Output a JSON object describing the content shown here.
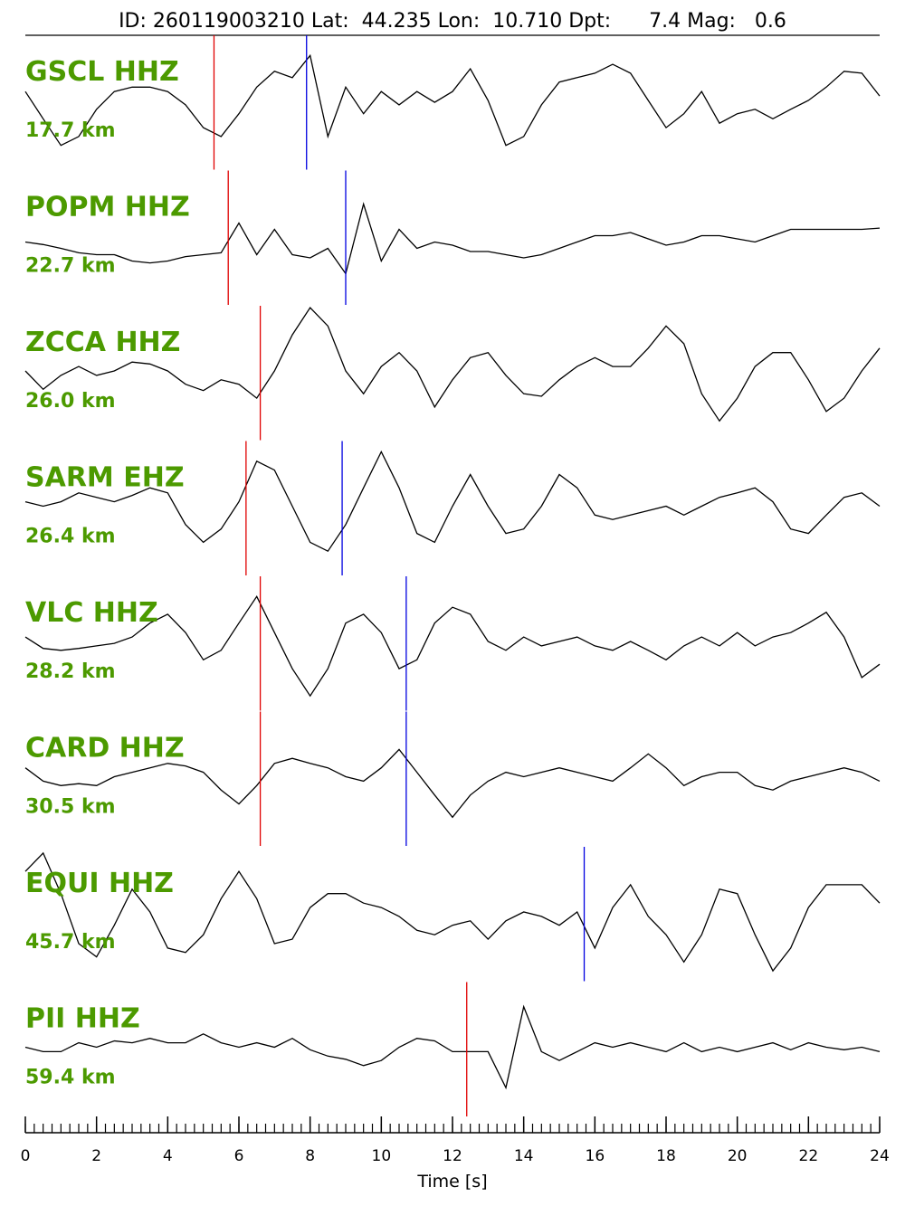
{
  "chart_data": {
    "type": "seismogram",
    "title": "ID: 260119003210 Lat:  44.235 Lon:  10.710 Dpt:      7.4 Mag:   0.6",
    "xlabel": "Time [s]",
    "xlim": [
      0,
      24
    ],
    "xticks": [
      0,
      2,
      4,
      6,
      8,
      10,
      12,
      14,
      16,
      18,
      20,
      22,
      24
    ],
    "xminor": 0.25,
    "label_color": "#4c9a00",
    "line_color": "#000000",
    "p_color": "#e00000",
    "s_color": "#0000e0",
    "x": [
      0,
      0.5,
      1,
      1.5,
      2,
      2.5,
      3,
      3.5,
      4,
      4.5,
      5,
      5.5,
      6,
      6.5,
      7,
      7.5,
      8,
      8.5,
      9,
      9.5,
      10,
      10.5,
      11,
      11.5,
      12,
      12.5,
      13,
      13.5,
      14,
      14.5,
      15,
      15.5,
      16,
      16.5,
      17,
      17.5,
      18,
      18.5,
      19,
      19.5,
      20,
      20.5,
      21,
      21.5,
      22,
      22.5,
      23,
      23.5,
      24
    ],
    "series": [
      {
        "name": "GSCL HHZ",
        "distance": "17.7 km",
        "p_pick": 5.3,
        "s_pick": 7.9,
        "values": [
          0.14,
          -0.29,
          -0.71,
          -0.57,
          -0.14,
          0.14,
          0.21,
          0.21,
          0.14,
          -0.07,
          -0.43,
          -0.57,
          -0.21,
          0.21,
          0.46,
          0.36,
          0.71,
          -0.57,
          0.21,
          -0.21,
          0.14,
          -0.07,
          0.14,
          -0.03,
          0.14,
          0.5,
          0,
          -0.71,
          -0.57,
          -0.07,
          0.29,
          0.36,
          0.43,
          0.57,
          0.43,
          0,
          -0.43,
          -0.21,
          0.14,
          -0.36,
          -0.21,
          -0.14,
          -0.29,
          -0.14,
          0,
          0.21,
          0.46,
          0.43,
          0.07
        ]
      },
      {
        "name": "POPM HHZ",
        "distance": "22.7 km",
        "p_pick": 5.7,
        "s_pick": 9.0,
        "values": [
          -0.1,
          -0.14,
          -0.2,
          -0.27,
          -0.3,
          -0.3,
          -0.4,
          -0.43,
          -0.4,
          -0.33,
          -0.3,
          -0.27,
          0.2,
          -0.3,
          0.1,
          -0.3,
          -0.35,
          -0.2,
          -0.6,
          0.5,
          -0.4,
          0.1,
          -0.2,
          -0.1,
          -0.15,
          -0.25,
          -0.25,
          -0.3,
          -0.35,
          -0.3,
          -0.2,
          -0.1,
          0,
          0,
          0.05,
          -0.05,
          -0.15,
          -0.1,
          0,
          0,
          -0.05,
          -0.1,
          0,
          0.1,
          0.1,
          0.1,
          0.1,
          0.1,
          0.12
        ]
      },
      {
        "name": "ZCCA HHZ",
        "distance": "26.0 km",
        "p_pick": 6.6,
        "values": [
          0,
          -0.29,
          -0.07,
          0.07,
          -0.07,
          0,
          0.14,
          0.11,
          0,
          -0.21,
          -0.31,
          -0.14,
          -0.21,
          -0.43,
          0,
          0.57,
          1,
          0.71,
          0,
          -0.36,
          0.07,
          0.29,
          0,
          -0.57,
          -0.14,
          0.21,
          0.29,
          -0.07,
          -0.36,
          -0.4,
          -0.14,
          0.07,
          0.21,
          0.07,
          0.07,
          0.36,
          0.71,
          0.43,
          -0.36,
          -0.79,
          -0.43,
          0.07,
          0.29,
          0.29,
          -0.14,
          -0.64,
          -0.43,
          0,
          0.36
        ]
      },
      {
        "name": "SARM EHZ",
        "distance": "26.4 km",
        "p_pick": 6.2,
        "s_pick": 8.9,
        "values": [
          0.07,
          0,
          0.07,
          0.21,
          0.14,
          0.07,
          0.17,
          0.29,
          0.21,
          -0.29,
          -0.57,
          -0.36,
          0.07,
          0.71,
          0.57,
          0,
          -0.57,
          -0.71,
          -0.29,
          0.29,
          0.86,
          0.29,
          -0.43,
          -0.57,
          0,
          0.5,
          0,
          -0.43,
          -0.36,
          0,
          0.5,
          0.29,
          -0.14,
          -0.21,
          -0.14,
          -0.07,
          0,
          -0.14,
          0,
          0.14,
          0.21,
          0.29,
          0.07,
          -0.36,
          -0.43,
          -0.14,
          0.14,
          0.21,
          0
        ]
      },
      {
        "name": "VLC HHZ",
        "distance": "28.2 km",
        "p_pick": 6.6,
        "s_pick": 10.7,
        "values": [
          0.07,
          -0.11,
          -0.14,
          -0.11,
          -0.07,
          -0.03,
          0.07,
          0.29,
          0.43,
          0.14,
          -0.29,
          -0.14,
          0.29,
          0.71,
          0.14,
          -0.43,
          -0.86,
          -0.43,
          0.29,
          0.43,
          0.14,
          -0.43,
          -0.29,
          0.29,
          0.54,
          0.43,
          0,
          -0.14,
          0.07,
          -0.07,
          0,
          0.07,
          -0.07,
          -0.14,
          0,
          -0.14,
          -0.29,
          -0.07,
          0.07,
          -0.07,
          0.14,
          -0.07,
          0.07,
          0.14,
          0.29,
          0.46,
          0.07,
          -0.57,
          -0.36
        ]
      },
      {
        "name": "CARD HHZ",
        "distance": "30.5 km",
        "p_pick": 6.6,
        "s_pick": 10.7,
        "values": [
          0.14,
          -0.07,
          -0.14,
          -0.11,
          -0.14,
          0,
          0.07,
          0.14,
          0.21,
          0.17,
          0.07,
          -0.21,
          -0.43,
          -0.14,
          0.21,
          0.29,
          0.21,
          0.14,
          0,
          -0.07,
          0.14,
          0.43,
          0.07,
          -0.29,
          -0.64,
          -0.29,
          -0.07,
          0.07,
          0,
          0.07,
          0.14,
          0.07,
          0,
          -0.07,
          0.14,
          0.36,
          0.14,
          -0.14,
          0,
          0.07,
          0.07,
          -0.14,
          -0.21,
          -0.07,
          0,
          0.07,
          0.14,
          0.07,
          -0.07
        ]
      },
      {
        "name": "EQUI HHZ",
        "distance": "45.7 km",
        "s_pick": 15.7,
        "values": [
          0.64,
          0.93,
          0.29,
          -0.5,
          -0.71,
          -0.21,
          0.36,
          0,
          -0.57,
          -0.64,
          -0.36,
          0.21,
          0.64,
          0.21,
          -0.5,
          -0.43,
          0.07,
          0.29,
          0.29,
          0.14,
          0.07,
          -0.07,
          -0.29,
          -0.36,
          -0.21,
          -0.14,
          -0.43,
          -0.14,
          0,
          -0.07,
          -0.21,
          0,
          -0.57,
          0.07,
          0.43,
          -0.07,
          -0.36,
          -0.79,
          -0.36,
          0.36,
          0.29,
          -0.36,
          -0.93,
          -0.57,
          0.07,
          0.43,
          0.43,
          0.43,
          0.14
        ]
      },
      {
        "name": "PII HHZ",
        "distance": "59.4 km",
        "p_pick": 12.4,
        "values": [
          0,
          -0.07,
          -0.07,
          0.07,
          0,
          0.1,
          0.07,
          0.14,
          0.07,
          0.07,
          0.21,
          0.07,
          0,
          0.07,
          0,
          0.14,
          -0.04,
          -0.14,
          -0.19,
          -0.29,
          -0.21,
          0,
          0.14,
          0.1,
          -0.07,
          -0.07,
          -0.07,
          -0.64,
          0.64,
          -0.07,
          -0.21,
          -0.07,
          0.07,
          0,
          0.07,
          0,
          -0.07,
          0.07,
          -0.07,
          0,
          -0.07,
          0,
          0.07,
          -0.04,
          0.07,
          0,
          -0.04,
          0,
          -0.07
        ]
      }
    ]
  }
}
